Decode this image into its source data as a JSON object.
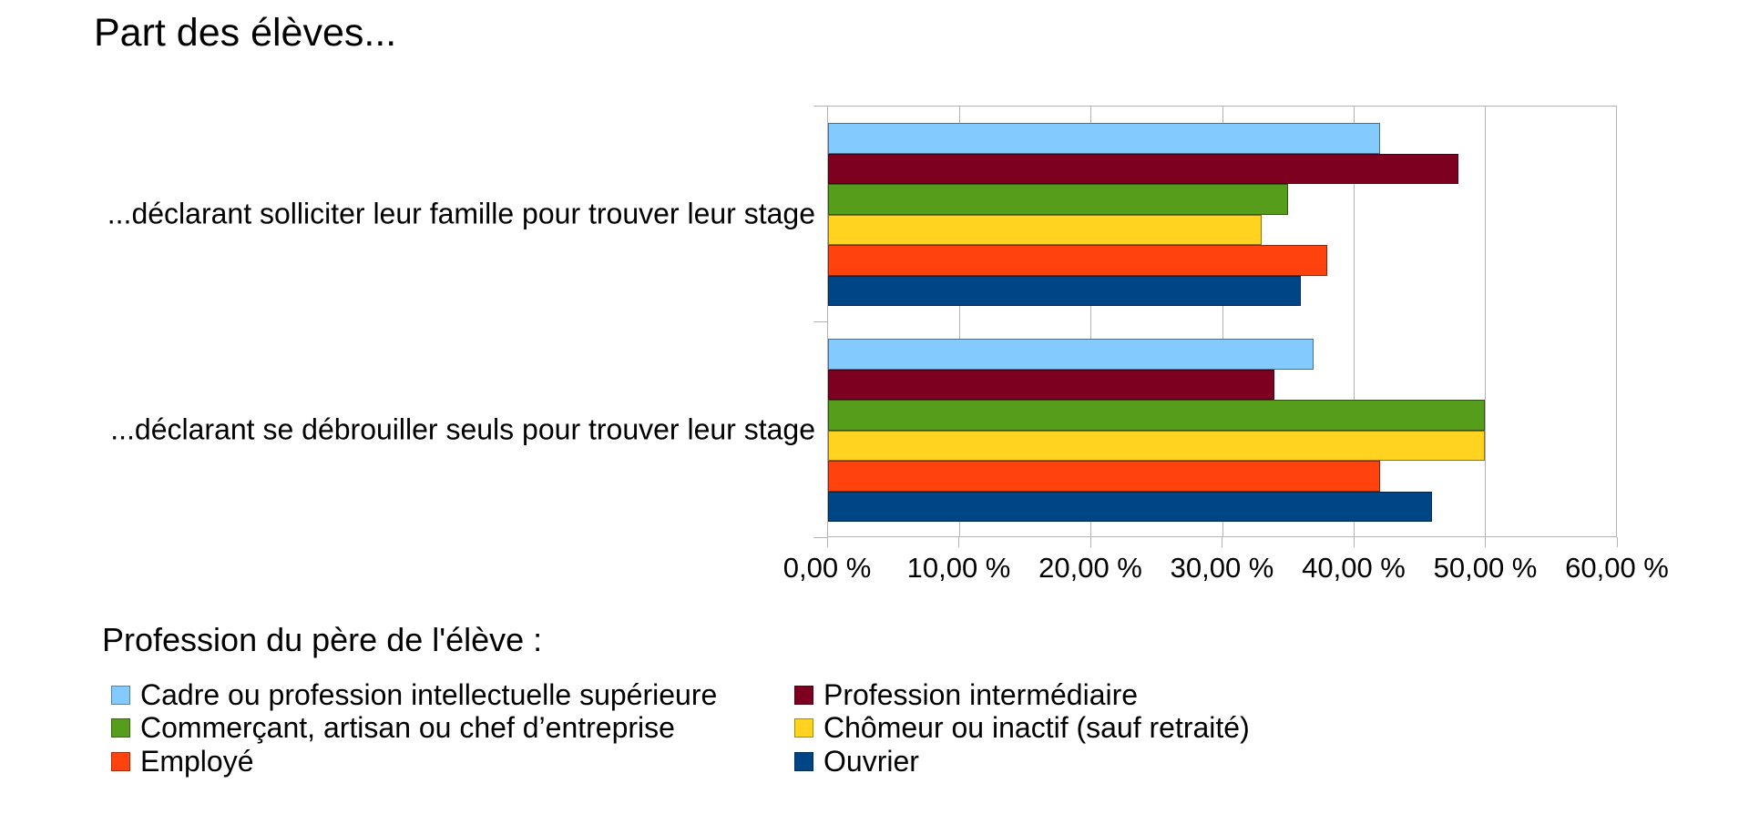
{
  "title": "Part des élèves...",
  "chart_data": {
    "type": "bar",
    "orientation": "horizontal",
    "title": "Part des élèves...",
    "categories": [
      "...déclarant solliciter leur famille pour trouver leur stage",
      "...déclarant se débrouiller seuls pour trouver leur stage"
    ],
    "series": [
      {
        "name": "Cadre ou profession intellectuelle supérieure",
        "color": "#83caff",
        "values": [
          42,
          37
        ]
      },
      {
        "name": "Profession intermédiaire",
        "color": "#7e0021",
        "values": [
          48,
          34
        ]
      },
      {
        "name": "Commerçant, artisan ou chef d’entreprise",
        "color": "#579d1c",
        "values": [
          35,
          50
        ]
      },
      {
        "name": "Chômeur ou inactif (sauf retraité)",
        "color": "#ffd320",
        "values": [
          33,
          50
        ]
      },
      {
        "name": "Employé",
        "color": "#ff420e",
        "values": [
          38,
          42
        ]
      },
      {
        "name": "Ouvrier",
        "color": "#004586",
        "values": [
          36,
          46
        ]
      }
    ],
    "xlim": [
      0,
      60
    ],
    "x_tick_step": 10,
    "x_tick_labels": [
      "0,00 %",
      "10,00 %",
      "20,00 %",
      "30,00 %",
      "40,00 %",
      "50,00 %",
      "60,00 %"
    ],
    "value_unit": "%",
    "grid": true,
    "grid_color": "#b3b3b3",
    "legend_title": "Profession du père de l'élève :",
    "legend_position": "bottom"
  }
}
